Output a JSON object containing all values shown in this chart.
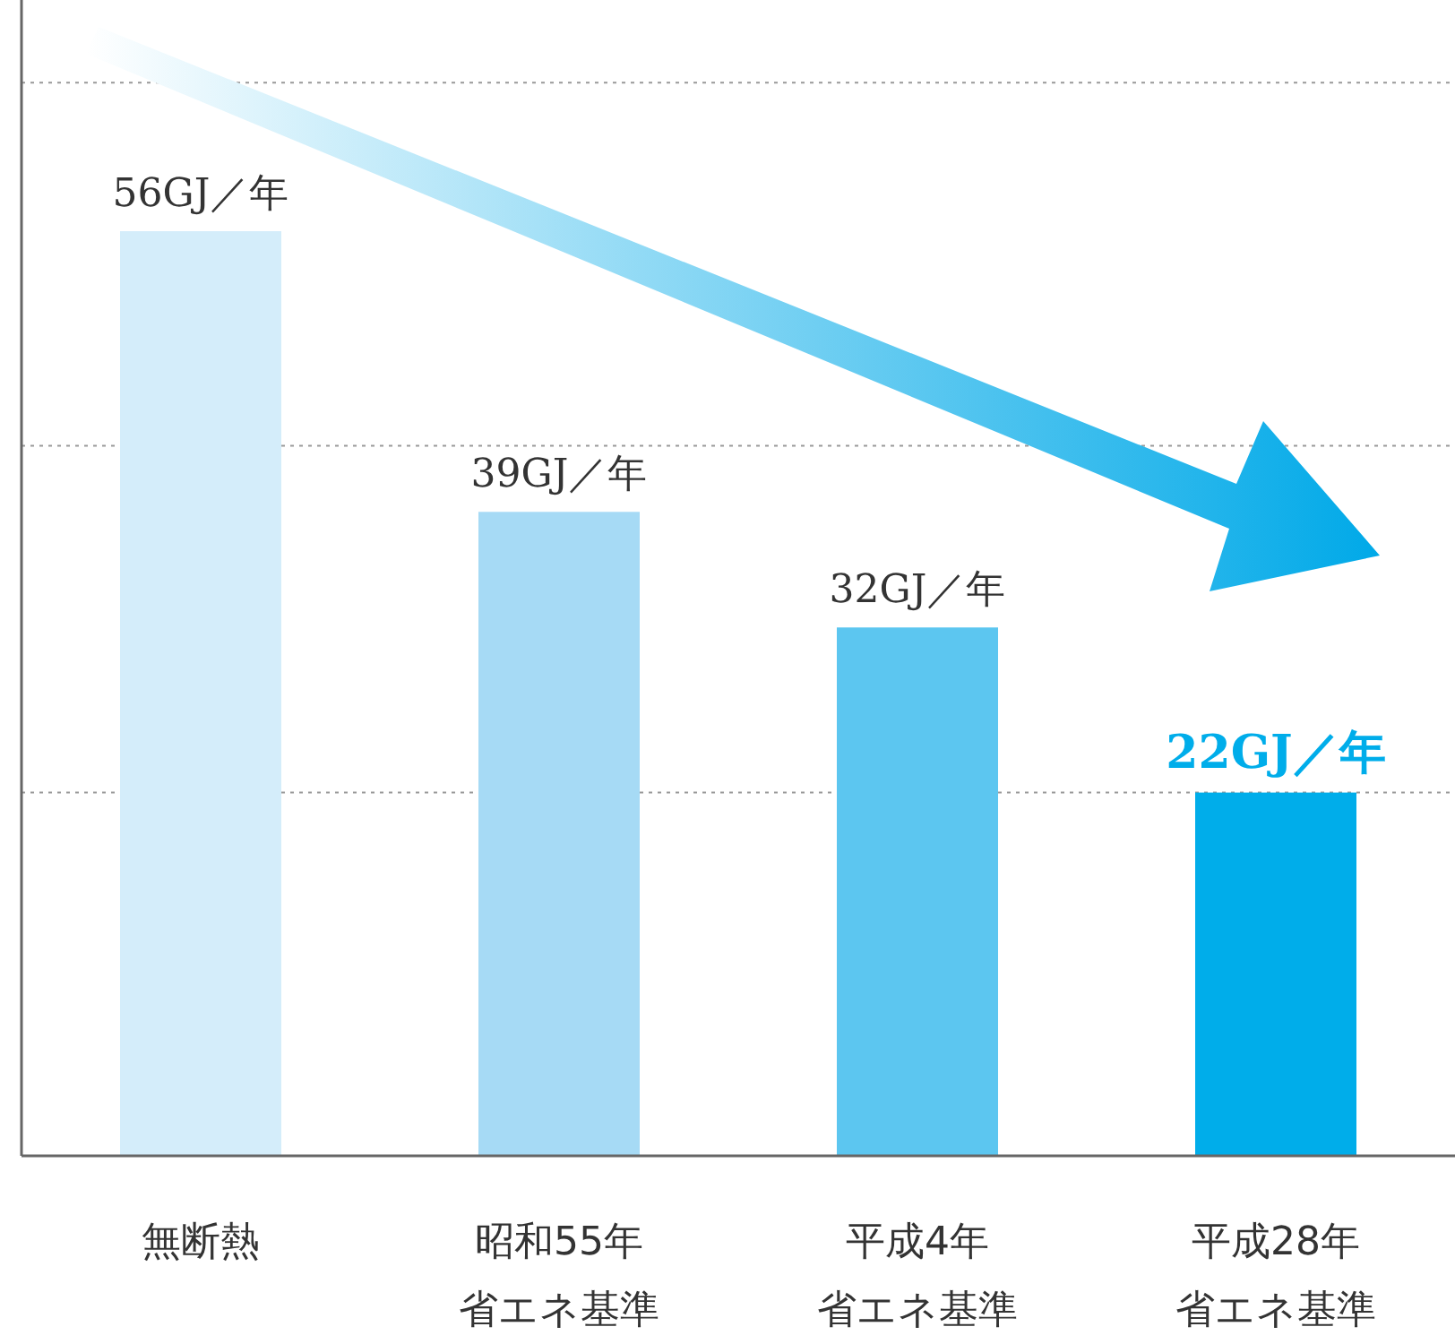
{
  "chart_data": {
    "type": "bar",
    "categories": [
      "無断熱",
      "昭和55年省エネ基準",
      "平成4年省エネ基準",
      "平成28年省エネ基準"
    ],
    "values": [
      56,
      39,
      32,
      22
    ],
    "colors": [
      "#d4edfa",
      "#a6daf5",
      "#5cc6f0",
      "#00adea"
    ],
    "value_labels": [
      "56GJ／年",
      "39GJ／年",
      "32GJ／年",
      "22GJ／年"
    ],
    "ylim": [
      0,
      70
    ],
    "yticks": [
      {
        "value": 22,
        "label": null
      },
      {
        "value": 43,
        "label": null
      },
      {
        "value": 65,
        "label": null
      }
    ],
    "tick_labels": "x",
    "grid": "y"
  }
}
